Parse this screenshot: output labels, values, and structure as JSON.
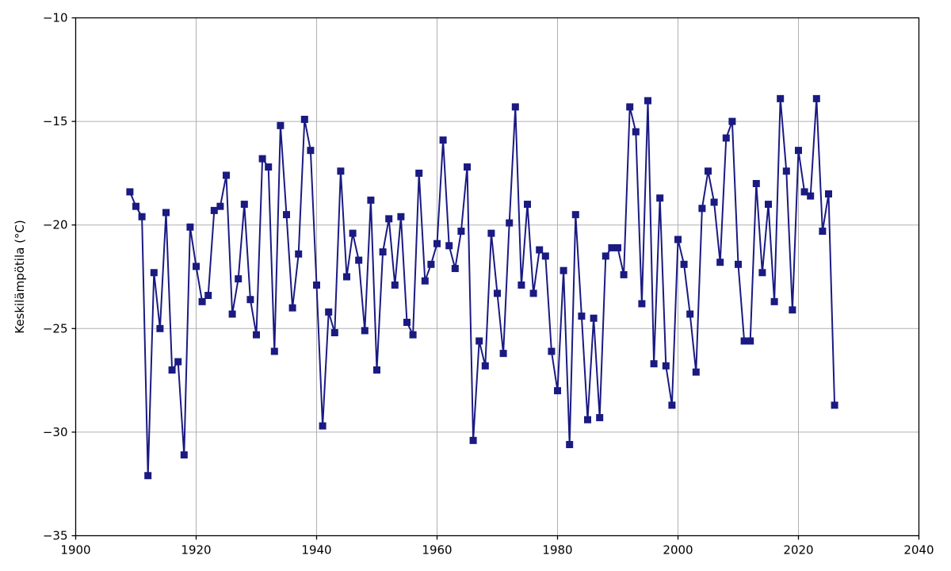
{
  "chart_data": {
    "type": "line",
    "title": "",
    "xlabel": "",
    "ylabel": "Keskilämpötila (°C)",
    "xlim": [
      1900,
      2040
    ],
    "ylim": [
      -35,
      -10
    ],
    "xticks": [
      1900,
      1920,
      1940,
      1960,
      1980,
      2000,
      2020,
      2040
    ],
    "xtick_labels": [
      "1900",
      "1920",
      "1940",
      "1960",
      "1980",
      "2000",
      "2020",
      "2040"
    ],
    "yticks": [
      -10,
      -15,
      -20,
      -25,
      -30,
      -35
    ],
    "ytick_labels": [
      "−10",
      "−15",
      "−20",
      "−25",
      "−30",
      "−35"
    ],
    "grid": true,
    "legend": false,
    "line_color": "#1a1a82",
    "grid_color": "#b0b0b0",
    "axis_color": "#000000",
    "marker": "square",
    "marker_size": 9,
    "line_width": 2,
    "x": [
      1909,
      1910,
      1911,
      1912,
      1913,
      1914,
      1915,
      1916,
      1917,
      1918,
      1919,
      1920,
      1921,
      1922,
      1923,
      1924,
      1925,
      1926,
      1927,
      1928,
      1929,
      1930,
      1931,
      1932,
      1933,
      1934,
      1935,
      1936,
      1937,
      1938,
      1939,
      1940,
      1941,
      1942,
      1943,
      1944,
      1945,
      1946,
      1947,
      1948,
      1949,
      1950,
      1951,
      1952,
      1953,
      1954,
      1955,
      1956,
      1957,
      1958,
      1959,
      1960,
      1961,
      1962,
      1963,
      1964,
      1965,
      1966,
      1967,
      1968,
      1969,
      1970,
      1971,
      1972,
      1973,
      1974,
      1975,
      1976,
      1977,
      1978,
      1979,
      1980,
      1981,
      1982,
      1983,
      1984,
      1985,
      1986,
      1987,
      1988,
      1989,
      1990,
      1991,
      1992,
      1993,
      1994,
      1995,
      1996,
      1997,
      1998,
      1999,
      2000,
      2001,
      2002,
      2003,
      2004,
      2005,
      2006,
      2007,
      2008,
      2009,
      2010,
      2011,
      2012,
      2013,
      2014,
      2015,
      2016,
      2017,
      2018,
      2019,
      2020,
      2021,
      2022,
      2023,
      2024,
      2025,
      2026
    ],
    "y": [
      -18.4,
      -19.1,
      -19.6,
      -32.1,
      -22.3,
      -25.0,
      -19.4,
      -27.0,
      -26.6,
      -31.1,
      -20.1,
      -22.0,
      -23.7,
      -23.4,
      -19.3,
      -19.1,
      -17.6,
      -24.3,
      -22.6,
      -19.0,
      -23.6,
      -25.3,
      -16.8,
      -17.2,
      -26.1,
      -15.2,
      -19.5,
      -24.0,
      -21.4,
      -14.9,
      -16.4,
      -22.9,
      -29.7,
      -24.2,
      -25.2,
      -17.4,
      -22.5,
      -20.4,
      -21.7,
      -25.1,
      -18.8,
      -27.0,
      -21.3,
      -19.7,
      -22.9,
      -19.6,
      -24.7,
      -25.3,
      -17.5,
      -22.7,
      -21.9,
      -20.9,
      -15.9,
      -21.0,
      -22.1,
      -20.3,
      -17.2,
      -30.4,
      -25.6,
      -26.8,
      -20.4,
      -23.3,
      -26.2,
      -19.9,
      -14.3,
      -22.9,
      -19.0,
      -23.3,
      -21.2,
      -21.5,
      -26.1,
      -28.0,
      -22.2,
      -30.6,
      -19.5,
      -24.4,
      -29.4,
      -24.5,
      -29.3,
      -21.5,
      -21.1,
      -21.1,
      -22.4,
      -14.3,
      -15.5,
      -23.8,
      -14.0,
      -26.7,
      -18.7,
      -26.8,
      -28.7,
      -20.7,
      -21.9,
      -24.3,
      -27.1,
      -19.2,
      -17.4,
      -18.9,
      -21.8,
      -15.8,
      -15.0,
      -21.9,
      -25.6,
      -25.6,
      -18.0,
      -22.3,
      -19.0,
      -23.7,
      -13.9,
      -17.4,
      -24.1,
      -16.4,
      -18.4,
      -18.6,
      -13.9,
      -20.3,
      -18.5,
      -28.7
    ]
  }
}
